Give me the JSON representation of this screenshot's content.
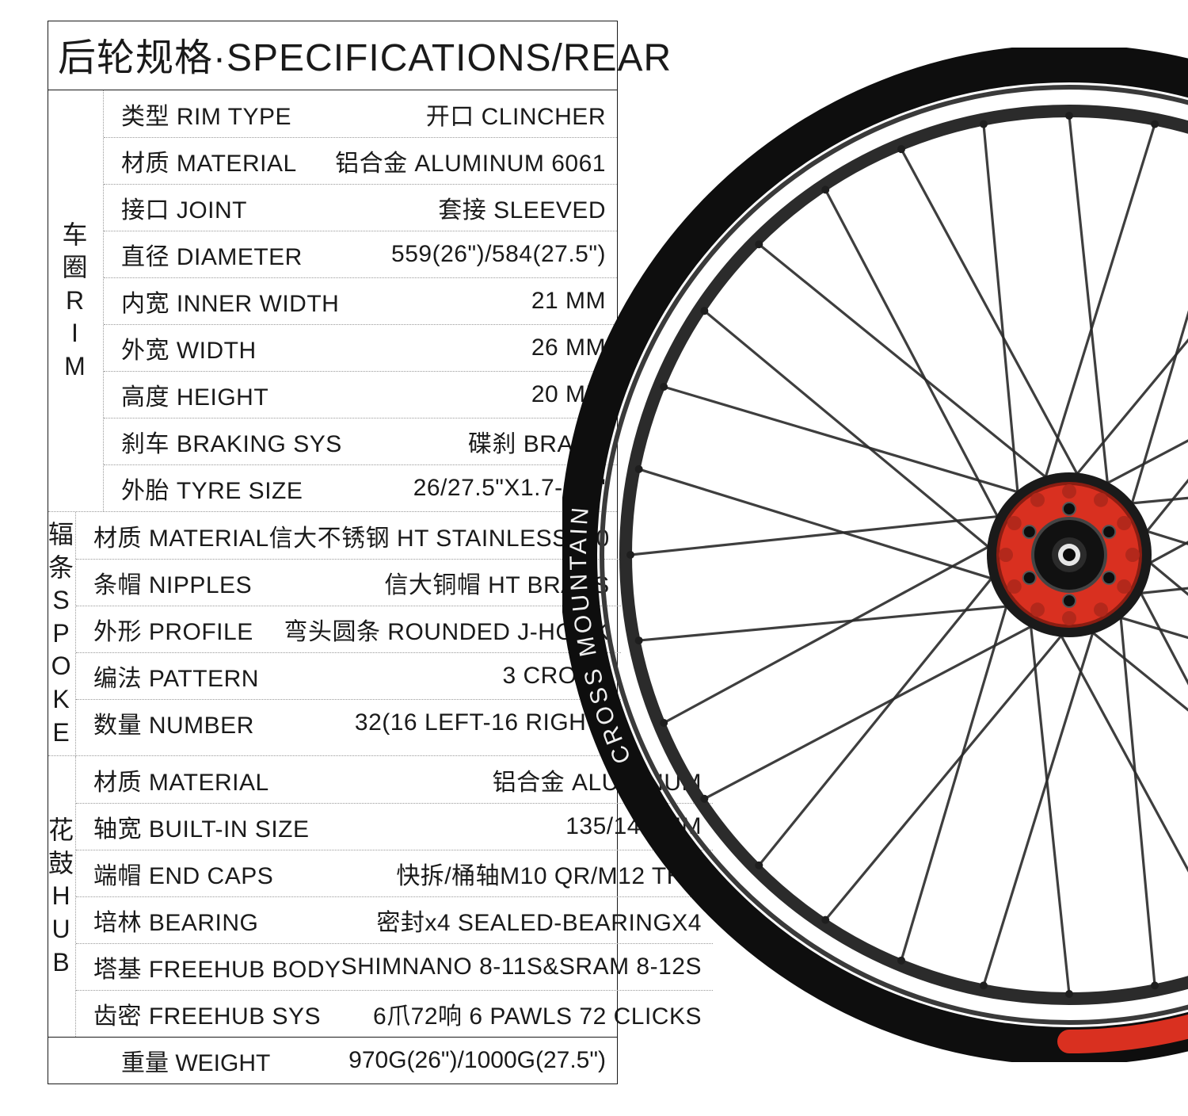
{
  "title": {
    "cn": "后轮规格",
    "en": "SPECIFICATIONS",
    "suffix": "/REAR"
  },
  "sections": [
    {
      "label_lines": [
        "车",
        "圈",
        "R",
        "I",
        "M"
      ],
      "rows": [
        {
          "k": "类型 RIM TYPE",
          "v": "开口 CLINCHER"
        },
        {
          "k": "材质 MATERIAL",
          "v": "铝合金 ALUMINUM 6061"
        },
        {
          "k": "接口 JOINT",
          "v": "套接 SLEEVED"
        },
        {
          "k": "直径 DIAMETER",
          "v": "559(26\")/584(27.5\")"
        },
        {
          "k": "内宽 INNER WIDTH",
          "v": "21 MM"
        },
        {
          "k": "外宽  WIDTH",
          "v": "26 MM"
        },
        {
          "k": "高度 HEIGHT",
          "v": "20 MM"
        },
        {
          "k": "刹车 BRAKING SYS",
          "v": "碟刹 BRAKE"
        },
        {
          "k": "外胎 TYRE SIZE",
          "v": "26/27.5\"X1.7-2.4\""
        }
      ]
    },
    {
      "label_lines": [
        "辐",
        "条",
        "S",
        "P",
        "O",
        "K",
        "E"
      ],
      "rows": [
        {
          "k": "材质 MATERIAL",
          "v": "信大不锈钢 HT STAINLESS 2.0"
        },
        {
          "k": "条帽 NIPPLES",
          "v": "信大铜帽 HT BRASS"
        },
        {
          "k": "外形  PROFILE",
          "v": "弯头圆条 ROUNDED J-HOOK"
        },
        {
          "k": "编法 PATTERN",
          "v": "3 CROSS"
        },
        {
          "k": "数量 NUMBER",
          "v": "32(16 LEFT-16 RIGHT)"
        }
      ]
    },
    {
      "label_lines": [
        "花",
        "鼓",
        "H",
        "U",
        "B"
      ],
      "rows": [
        {
          "k": "材质 MATERIAL",
          "v": "铝合金 ALUMINUM"
        },
        {
          "k": "轴宽 BUILT-IN SIZE",
          "v": "135/142 MM"
        },
        {
          "k": "端帽 END CAPS",
          "v": "快拆/桶轴M10 QR/M12 THR"
        },
        {
          "k": "培林  BEARING",
          "v": "密封x4 SEALED-BEARINGX4"
        },
        {
          "k": "塔基 FREEHUB BODY",
          "v": "SHIMNANO 8-11S&SRAM 8-12S"
        },
        {
          "k": "齿密 FREEHUB SYS",
          "v": "6爪72响 6 PAWLS 72 CLICKS"
        }
      ]
    }
  ],
  "footer": {
    "k": "重量 WEIGHT",
    "v": "970G(26\")/1000G(27.5\")"
  },
  "wheel": {
    "rim_outer_r": 620,
    "rim_inner_r": 560,
    "rim_color": "#0e0e0e",
    "rim_decal_color": "#d93020",
    "rim_text_color": "#f0f0f0",
    "rim_text": "CROSS MOUNTAIN",
    "spoke_color": "#2a2a2a",
    "spoke_count": 32,
    "spoke_cross": 3,
    "hub_flange_r": 90,
    "hub_body_r": 46,
    "hub_axle_r": 14,
    "hub_color_flange": "#d93020",
    "hub_color_cassette": "#1a1a1a",
    "hub_bolt_count": 6,
    "background": "#ffffff"
  }
}
